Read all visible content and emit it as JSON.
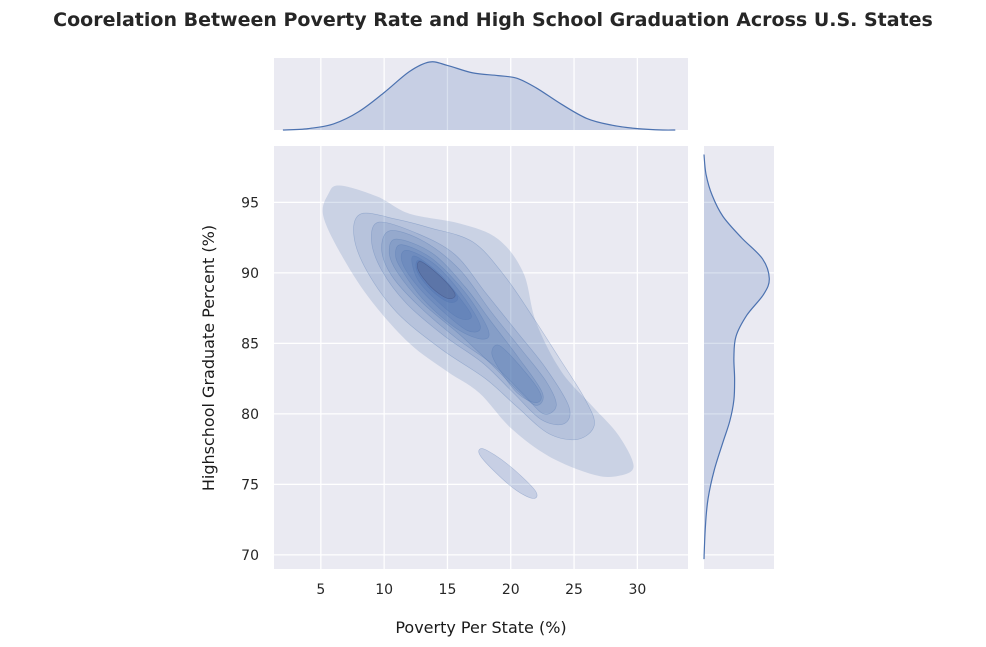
{
  "chart_data": {
    "type": "kde_joint",
    "title": "Coorelation Between Poverty Rate and High School Graduation Across U.S. States",
    "xlabel": "Poverty Per State (%)",
    "ylabel": "Highschool Graduate Percent (%)",
    "xlim": [
      1.3,
      34.0
    ],
    "ylim": [
      69.0,
      99.0
    ],
    "x_ticks": [
      5,
      10,
      15,
      20,
      25,
      30
    ],
    "y_ticks": [
      70,
      75,
      80,
      85,
      90,
      95
    ],
    "grid": true,
    "colors": {
      "background": "#eaeaf2",
      "grid": "#ffffff",
      "fill": "#4c72b0",
      "line": "#4c72b0",
      "text": "#262626"
    },
    "joint_density": {
      "kind": "filled_contour",
      "main_ridge": [
        [
          5.0,
          95.0
        ],
        [
          13.5,
          89.5
        ],
        [
          21.0,
          82.0
        ],
        [
          29.5,
          76.0
        ]
      ],
      "peaks": [
        [
          13.8,
          89.6
        ],
        [
          20.8,
          82.2
        ]
      ],
      "isolated_region": {
        "from": [
          17.5,
          77.5
        ],
        "to": [
          22.0,
          74.2
        ]
      },
      "levels": 10
    },
    "marginal_x": {
      "x": [
        2,
        4,
        6,
        8,
        10,
        12,
        13.6,
        15,
        17,
        19,
        20.5,
        22,
        24,
        26,
        28,
        30,
        32,
        33
      ],
      "density": [
        0.0,
        0.02,
        0.09,
        0.27,
        0.55,
        0.86,
        1.0,
        0.95,
        0.84,
        0.8,
        0.76,
        0.62,
        0.38,
        0.17,
        0.07,
        0.02,
        0.0,
        0.0
      ]
    },
    "marginal_y": {
      "y": [
        69.7,
        72,
        74,
        76,
        78,
        79.5,
        81,
        82.5,
        84,
        85.5,
        87,
        88.5,
        89.6,
        91,
        92.5,
        94,
        95.5,
        97,
        98.4
      ],
      "density": [
        0.0,
        0.02,
        0.06,
        0.15,
        0.28,
        0.38,
        0.44,
        0.45,
        0.44,
        0.47,
        0.63,
        0.88,
        0.96,
        0.86,
        0.55,
        0.28,
        0.12,
        0.03,
        0.0
      ]
    }
  }
}
